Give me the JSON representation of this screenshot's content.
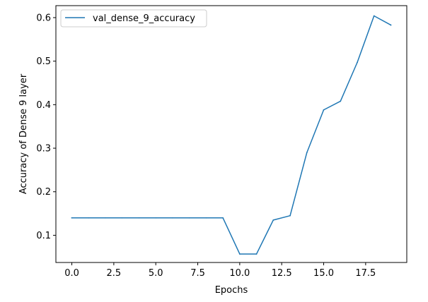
{
  "chart_data": {
    "type": "line",
    "title": "",
    "xlabel": "Epochs",
    "ylabel": "Accuracy of Dense 9 layer",
    "xlim": [
      -0.95,
      19.95
    ],
    "ylim": [
      0.0375,
      0.6275
    ],
    "xticks": [
      0.0,
      2.5,
      5.0,
      7.5,
      10.0,
      12.5,
      15.0,
      17.5
    ],
    "xtick_labels": [
      "0.0",
      "2.5",
      "5.0",
      "7.5",
      "10.0",
      "12.5",
      "15.0",
      "17.5"
    ],
    "yticks": [
      0.1,
      0.2,
      0.3,
      0.4,
      0.5,
      0.6
    ],
    "ytick_labels": [
      "0.1",
      "0.2",
      "0.3",
      "0.4",
      "0.5",
      "0.6"
    ],
    "grid": false,
    "legend": "top-left",
    "series": [
      {
        "name": "val_dense_9_accuracy",
        "color": "#1f77b4",
        "x": [
          0,
          1,
          2,
          3,
          4,
          5,
          6,
          7,
          8,
          9,
          10,
          11,
          12,
          13,
          14,
          15,
          16,
          17,
          18,
          19
        ],
        "y": [
          0.14,
          0.14,
          0.14,
          0.14,
          0.14,
          0.14,
          0.14,
          0.14,
          0.14,
          0.14,
          0.057,
          0.057,
          0.135,
          0.145,
          0.29,
          0.388,
          0.408,
          0.497,
          0.604,
          0.583
        ]
      }
    ]
  }
}
